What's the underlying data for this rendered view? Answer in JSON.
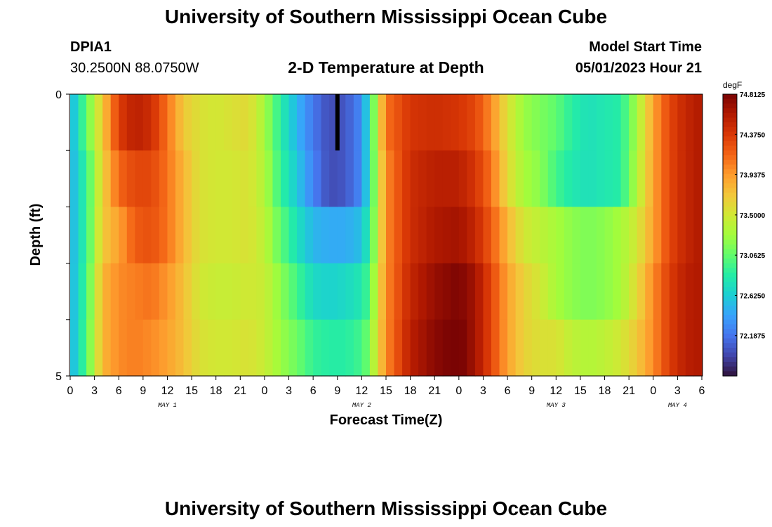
{
  "header": {
    "title": "University of Southern Mississippi Ocean Cube",
    "station_id": "DPIA1",
    "coords": "30.2500N  88.0750W",
    "plot_title": "2-D Temperature at Depth",
    "model_start_label": "Model Start Time",
    "model_start_value": "05/01/2023 Hour 21"
  },
  "footer": {
    "title": "University of Southern Mississippi Ocean Cube"
  },
  "colorbar": {
    "unit": "degF",
    "ticks": [
      "74.8125",
      "74.3750",
      "73.9375",
      "73.5000",
      "73.0625",
      "72.6250",
      "72.1875"
    ],
    "tick_values": [
      74.8125,
      74.375,
      73.9375,
      73.5,
      73.0625,
      72.625,
      72.1875
    ],
    "min": 71.75,
    "max": 74.8125,
    "colors": [
      "#30123b",
      "#4145ab",
      "#4675ed",
      "#39a2fc",
      "#1bcfd4",
      "#24eca6",
      "#61fc6c",
      "#a4fc3b",
      "#d1e834",
      "#f3c63a",
      "#fe9b2d",
      "#f36315",
      "#d93806",
      "#b11901",
      "#7a0403"
    ]
  },
  "chart_data": {
    "type": "heatmap",
    "title": "2-D Temperature at Depth",
    "xlabel": "Forecast Time(Z)",
    "ylabel": "Depth (ft)",
    "ylim": [
      0,
      5
    ],
    "y_tick_labels": [
      "0",
      "5"
    ],
    "x_tick_labels": [
      "0",
      "3",
      "6",
      "9",
      "12",
      "15",
      "18",
      "21",
      "0",
      "3",
      "6",
      "9",
      "12",
      "15",
      "18",
      "21",
      "0",
      "3",
      "6",
      "9",
      "12",
      "15",
      "18",
      "21",
      "0",
      "3",
      "6"
    ],
    "day_labels": [
      "MAY 1",
      "MAY 2",
      "MAY 3",
      "MAY 4"
    ],
    "x_range_hours": [
      0,
      78
    ],
    "depth_levels": 5,
    "profile_keys": [
      {
        "hour": 0,
        "temps": [
          72.45,
          72.45,
          72.45,
          72.45,
          72.45
        ]
      },
      {
        "hour": 2,
        "temps": [
          73.05,
          72.9,
          72.9,
          72.95,
          73.0
        ]
      },
      {
        "hour": 4,
        "temps": [
          73.7,
          73.65,
          73.7,
          73.8,
          73.8
        ]
      },
      {
        "hour": 6,
        "temps": [
          74.35,
          74.15,
          73.9,
          74.0,
          74.0
        ]
      },
      {
        "hour": 8,
        "temps": [
          74.55,
          74.3,
          74.2,
          74.05,
          74.05
        ]
      },
      {
        "hour": 10,
        "temps": [
          74.45,
          74.3,
          74.25,
          74.1,
          74.0
        ]
      },
      {
        "hour": 12,
        "temps": [
          74.1,
          74.1,
          74.1,
          73.95,
          73.9
        ]
      },
      {
        "hour": 14,
        "temps": [
          73.7,
          73.8,
          73.8,
          73.75,
          73.75
        ]
      },
      {
        "hour": 16,
        "temps": [
          73.55,
          73.55,
          73.55,
          73.5,
          73.55
        ]
      },
      {
        "hour": 18,
        "temps": [
          73.5,
          73.5,
          73.5,
          73.45,
          73.5
        ]
      },
      {
        "hour": 20,
        "temps": [
          73.55,
          73.5,
          73.5,
          73.45,
          73.5
        ]
      },
      {
        "hour": 22,
        "temps": [
          73.6,
          73.55,
          73.55,
          73.5,
          73.55
        ]
      },
      {
        "hour": 24,
        "temps": [
          73.3,
          73.35,
          73.4,
          73.45,
          73.45
        ]
      },
      {
        "hour": 26,
        "temps": [
          72.85,
          72.9,
          73.05,
          73.2,
          73.25
        ]
      },
      {
        "hour": 28,
        "temps": [
          72.5,
          72.6,
          72.75,
          72.95,
          73.1
        ]
      },
      {
        "hour": 30,
        "temps": [
          72.2,
          72.25,
          72.5,
          72.7,
          72.9
        ]
      },
      {
        "hour": 32,
        "temps": [
          72.0,
          72.0,
          72.45,
          72.65,
          72.85
        ]
      },
      {
        "hour": 34,
        "temps": [
          72.05,
          72.05,
          72.45,
          72.7,
          72.85
        ]
      },
      {
        "hour": 36,
        "temps": [
          72.3,
          72.3,
          72.55,
          72.8,
          72.95
        ]
      },
      {
        "hour": 37,
        "temps": [
          72.8,
          72.8,
          72.9,
          73.0,
          73.15
        ]
      },
      {
        "hour": 38,
        "temps": [
          73.5,
          73.45,
          73.45,
          73.55,
          73.6
        ]
      },
      {
        "hour": 39,
        "temps": [
          74.1,
          74.0,
          74.0,
          74.0,
          74.0
        ]
      },
      {
        "hour": 42,
        "temps": [
          74.4,
          74.45,
          74.45,
          74.5,
          74.55
        ]
      },
      {
        "hour": 45,
        "temps": [
          74.45,
          74.55,
          74.6,
          74.7,
          74.75
        ]
      },
      {
        "hour": 48,
        "temps": [
          74.4,
          74.55,
          74.65,
          74.8,
          74.85
        ]
      },
      {
        "hour": 50,
        "temps": [
          74.3,
          74.4,
          74.5,
          74.65,
          74.65
        ]
      },
      {
        "hour": 52,
        "temps": [
          74.0,
          74.1,
          74.2,
          74.3,
          74.3
        ]
      },
      {
        "hour": 54,
        "temps": [
          73.55,
          73.6,
          73.8,
          73.9,
          73.9
        ]
      },
      {
        "hour": 56,
        "temps": [
          73.25,
          73.3,
          73.5,
          73.65,
          73.65
        ]
      },
      {
        "hour": 58,
        "temps": [
          73.15,
          73.2,
          73.4,
          73.5,
          73.55
        ]
      },
      {
        "hour": 60,
        "temps": [
          73.05,
          72.95,
          73.3,
          73.3,
          73.55
        ]
      },
      {
        "hour": 62,
        "temps": [
          72.85,
          72.8,
          73.2,
          73.2,
          73.4
        ]
      },
      {
        "hour": 64,
        "temps": [
          72.75,
          72.75,
          73.15,
          73.15,
          73.35
        ]
      },
      {
        "hour": 66,
        "temps": [
          72.8,
          72.8,
          73.2,
          73.2,
          73.4
        ]
      },
      {
        "hour": 68,
        "temps": [
          72.85,
          72.85,
          73.3,
          73.3,
          73.5
        ]
      },
      {
        "hour": 70,
        "temps": [
          73.3,
          73.35,
          73.5,
          73.6,
          73.7
        ]
      },
      {
        "hour": 72,
        "temps": [
          73.9,
          73.9,
          73.9,
          74.0,
          74.0
        ]
      },
      {
        "hour": 74,
        "temps": [
          74.3,
          74.3,
          74.3,
          74.35,
          74.35
        ]
      },
      {
        "hour": 76,
        "temps": [
          74.5,
          74.5,
          74.5,
          74.55,
          74.55
        ]
      },
      {
        "hour": 78,
        "temps": [
          74.6,
          74.6,
          74.6,
          74.6,
          74.6
        ]
      }
    ],
    "marker": {
      "hour": 33,
      "depth_range": [
        0,
        1
      ],
      "color": "#000000"
    }
  }
}
